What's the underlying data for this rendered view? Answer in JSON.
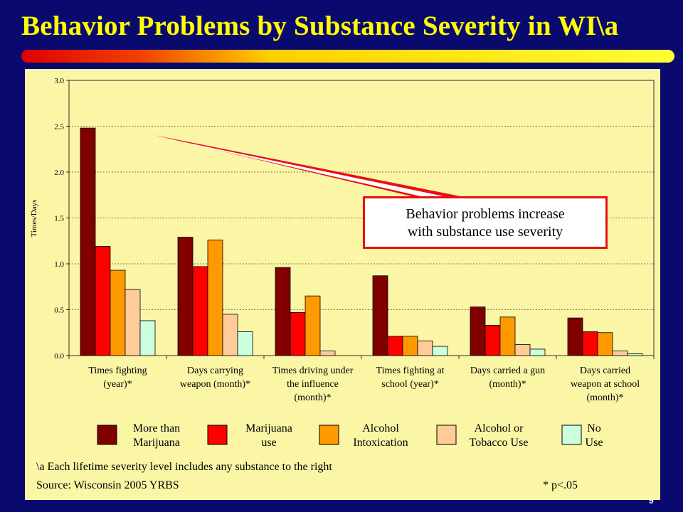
{
  "title": "Behavior Problems by Substance Severity in WI\\a",
  "page_number": "9",
  "callout": {
    "line1": "Behavior problems increase",
    "line2": "with substance use severity"
  },
  "footnotes": {
    "note": "\\a  Each lifetime severity level includes any substance to the right",
    "source": "Source: Wisconsin 2005 YRBS",
    "significance": "* p<.05"
  },
  "legend": [
    {
      "line1": "More than",
      "line2": "Marijuana"
    },
    {
      "line1": "Marijuana",
      "line2": "use"
    },
    {
      "line1": "Alcohol",
      "line2": "Intoxication"
    },
    {
      "line1": "Alcohol or",
      "line2": "Tobacco Use"
    },
    {
      "line1": "No",
      "line2": "Use"
    }
  ],
  "chart_data": {
    "type": "bar",
    "title": "",
    "xlabel": "",
    "ylabel": "Times/Days",
    "ylim": [
      0,
      3.0
    ],
    "yticks": [
      "0.0",
      "0.5",
      "1.0",
      "1.5",
      "2.0",
      "2.5",
      "3.0"
    ],
    "grid": true,
    "legend_position": "bottom",
    "categories": [
      [
        "Times fighting",
        "(year)*"
      ],
      [
        "Days carrying",
        "weapon (month)*"
      ],
      [
        "Times driving under",
        "the influence",
        "(month)*"
      ],
      [
        "Times fighting at",
        "school (year)*"
      ],
      [
        "Days carried a gun",
        "(month)*"
      ],
      [
        "Days carried",
        "weapon at school",
        "(month)*"
      ]
    ],
    "series": [
      {
        "name": "More than Marijuana",
        "color": "#800000",
        "values": [
          2.48,
          1.29,
          0.96,
          0.87,
          0.53,
          0.41
        ]
      },
      {
        "name": "Marijuana use",
        "color": "#ff0000",
        "values": [
          1.19,
          0.97,
          0.47,
          0.21,
          0.33,
          0.26
        ]
      },
      {
        "name": "Alcohol Intoxication",
        "color": "#ff9900",
        "values": [
          0.93,
          1.26,
          0.65,
          0.21,
          0.42,
          0.25
        ]
      },
      {
        "name": "Alcohol or Tobacco Use",
        "color": "#ffcc99",
        "values": [
          0.72,
          0.45,
          0.05,
          0.16,
          0.12,
          0.05
        ]
      },
      {
        "name": "No Use",
        "color": "#ccffdd",
        "values": [
          0.38,
          0.26,
          0.0,
          0.1,
          0.07,
          0.02
        ]
      }
    ]
  }
}
